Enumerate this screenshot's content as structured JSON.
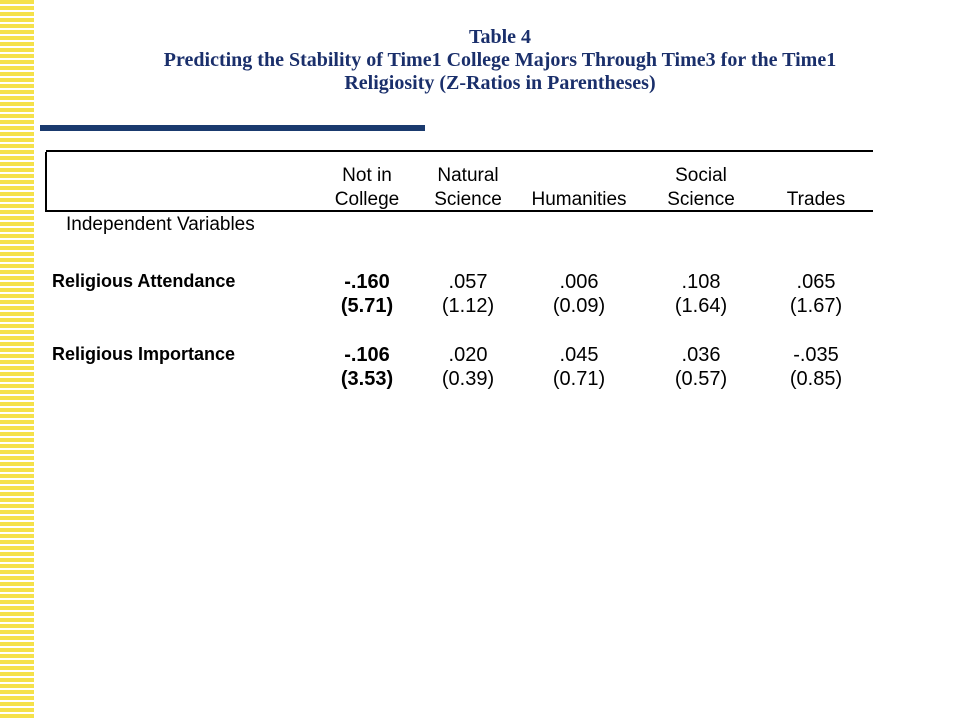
{
  "title": {
    "line1": "Table 4",
    "line2": "Predicting the Stability of Time1 College Majors Through Time3 for the Time1",
    "line3": "Religiosity (Z-Ratios in Parentheses)"
  },
  "table": {
    "columns": [
      {
        "line1": "Not in",
        "line2": "College"
      },
      {
        "line1": "Natural",
        "line2": "Science"
      },
      {
        "line1": "",
        "line2": "Humanities"
      },
      {
        "line1": "Social",
        "line2": "Science"
      },
      {
        "line1": "",
        "line2": "Trades"
      }
    ],
    "section_label": "Independent Variables",
    "rows": [
      {
        "label": "Religious Attendance",
        "cells": [
          {
            "coef": "-.160",
            "z": "(5.71)"
          },
          {
            "coef": ".057",
            "z": "(1.12)"
          },
          {
            "coef": ".006",
            "z": "(0.09)"
          },
          {
            "coef": ".108",
            "z": "(1.64)"
          },
          {
            "coef": ".065",
            "z": "(1.67)"
          }
        ]
      },
      {
        "label": "Religious Importance",
        "cells": [
          {
            "coef": "-.106",
            "z": "(3.53)"
          },
          {
            "coef": ".020",
            "z": "(0.39)"
          },
          {
            "coef": ".045",
            "z": "(0.71)"
          },
          {
            "coef": ".036",
            "z": "(0.57)"
          },
          {
            "coef": "-.035",
            "z": "(0.85)"
          }
        ]
      }
    ]
  },
  "colors": {
    "title": "#1a2f6b",
    "accent_bar": "#1a3a6e",
    "stripe": "#f5e14a"
  }
}
